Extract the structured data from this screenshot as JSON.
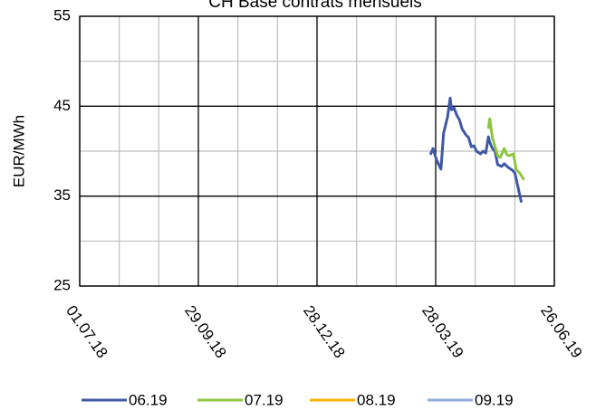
{
  "chart_data": {
    "type": "line",
    "title": "CH Base contrats mensuels",
    "ylabel": "EUR/MWh",
    "xlim": [
      "2018-07-01",
      "2019-06-26"
    ],
    "xticks": [
      {
        "value": "2018-07-01",
        "label": "01.07.18"
      },
      {
        "value": "2018-09-29",
        "label": "29.09.18"
      },
      {
        "value": "2018-12-28",
        "label": "28.12.18"
      },
      {
        "value": "2019-03-28",
        "label": "28.03.19"
      },
      {
        "value": "2019-06-26",
        "label": "26.06.19"
      }
    ],
    "ylim": [
      25,
      55
    ],
    "yticks": [
      25,
      35,
      45,
      55
    ],
    "grid": true,
    "legend": "bottom",
    "series": [
      {
        "name": "06.19",
        "color": "#3f58a6",
        "x": [
          "2019-03-24",
          "2019-03-26",
          "2019-03-28",
          "2019-03-30",
          "2019-04-01",
          "2019-04-03",
          "2019-04-06",
          "2019-04-08",
          "2019-04-09",
          "2019-04-11",
          "2019-04-13",
          "2019-04-15",
          "2019-04-17",
          "2019-04-20",
          "2019-04-22",
          "2019-04-24",
          "2019-04-26",
          "2019-04-28",
          "2019-05-01",
          "2019-05-03",
          "2019-05-05",
          "2019-05-07",
          "2019-05-08",
          "2019-05-10",
          "2019-05-12",
          "2019-05-14",
          "2019-05-17",
          "2019-05-19",
          "2019-05-22",
          "2019-05-25",
          "2019-05-27",
          "2019-05-29",
          "2019-06-01"
        ],
        "values": [
          39.6,
          40.3,
          39.3,
          38.6,
          38.0,
          42.0,
          43.8,
          45.9,
          44.6,
          44.8,
          44.0,
          43.5,
          42.5,
          41.8,
          41.5,
          40.5,
          40.6,
          40.0,
          39.7,
          40.0,
          39.8,
          41.6,
          41.0,
          40.3,
          40.0,
          38.5,
          38.3,
          38.6,
          38.2,
          37.9,
          37.6,
          36.3,
          34.3
        ]
      },
      {
        "name": "07.19",
        "color": "#8cc63f",
        "x": [
          "2019-05-07",
          "2019-05-08",
          "2019-05-10",
          "2019-05-12",
          "2019-05-14",
          "2019-05-16",
          "2019-05-19",
          "2019-05-21",
          "2019-05-23",
          "2019-05-26",
          "2019-05-28",
          "2019-05-31",
          "2019-06-03"
        ],
        "values": [
          42.5,
          43.6,
          41.5,
          40.5,
          39.5,
          39.3,
          40.3,
          39.6,
          39.5,
          39.7,
          38.0,
          37.5,
          36.8
        ]
      },
      {
        "name": "08.19",
        "color": "#ffb000",
        "x": [],
        "values": []
      },
      {
        "name": "09.19",
        "color": "#8faadc",
        "x": [],
        "values": []
      }
    ]
  }
}
